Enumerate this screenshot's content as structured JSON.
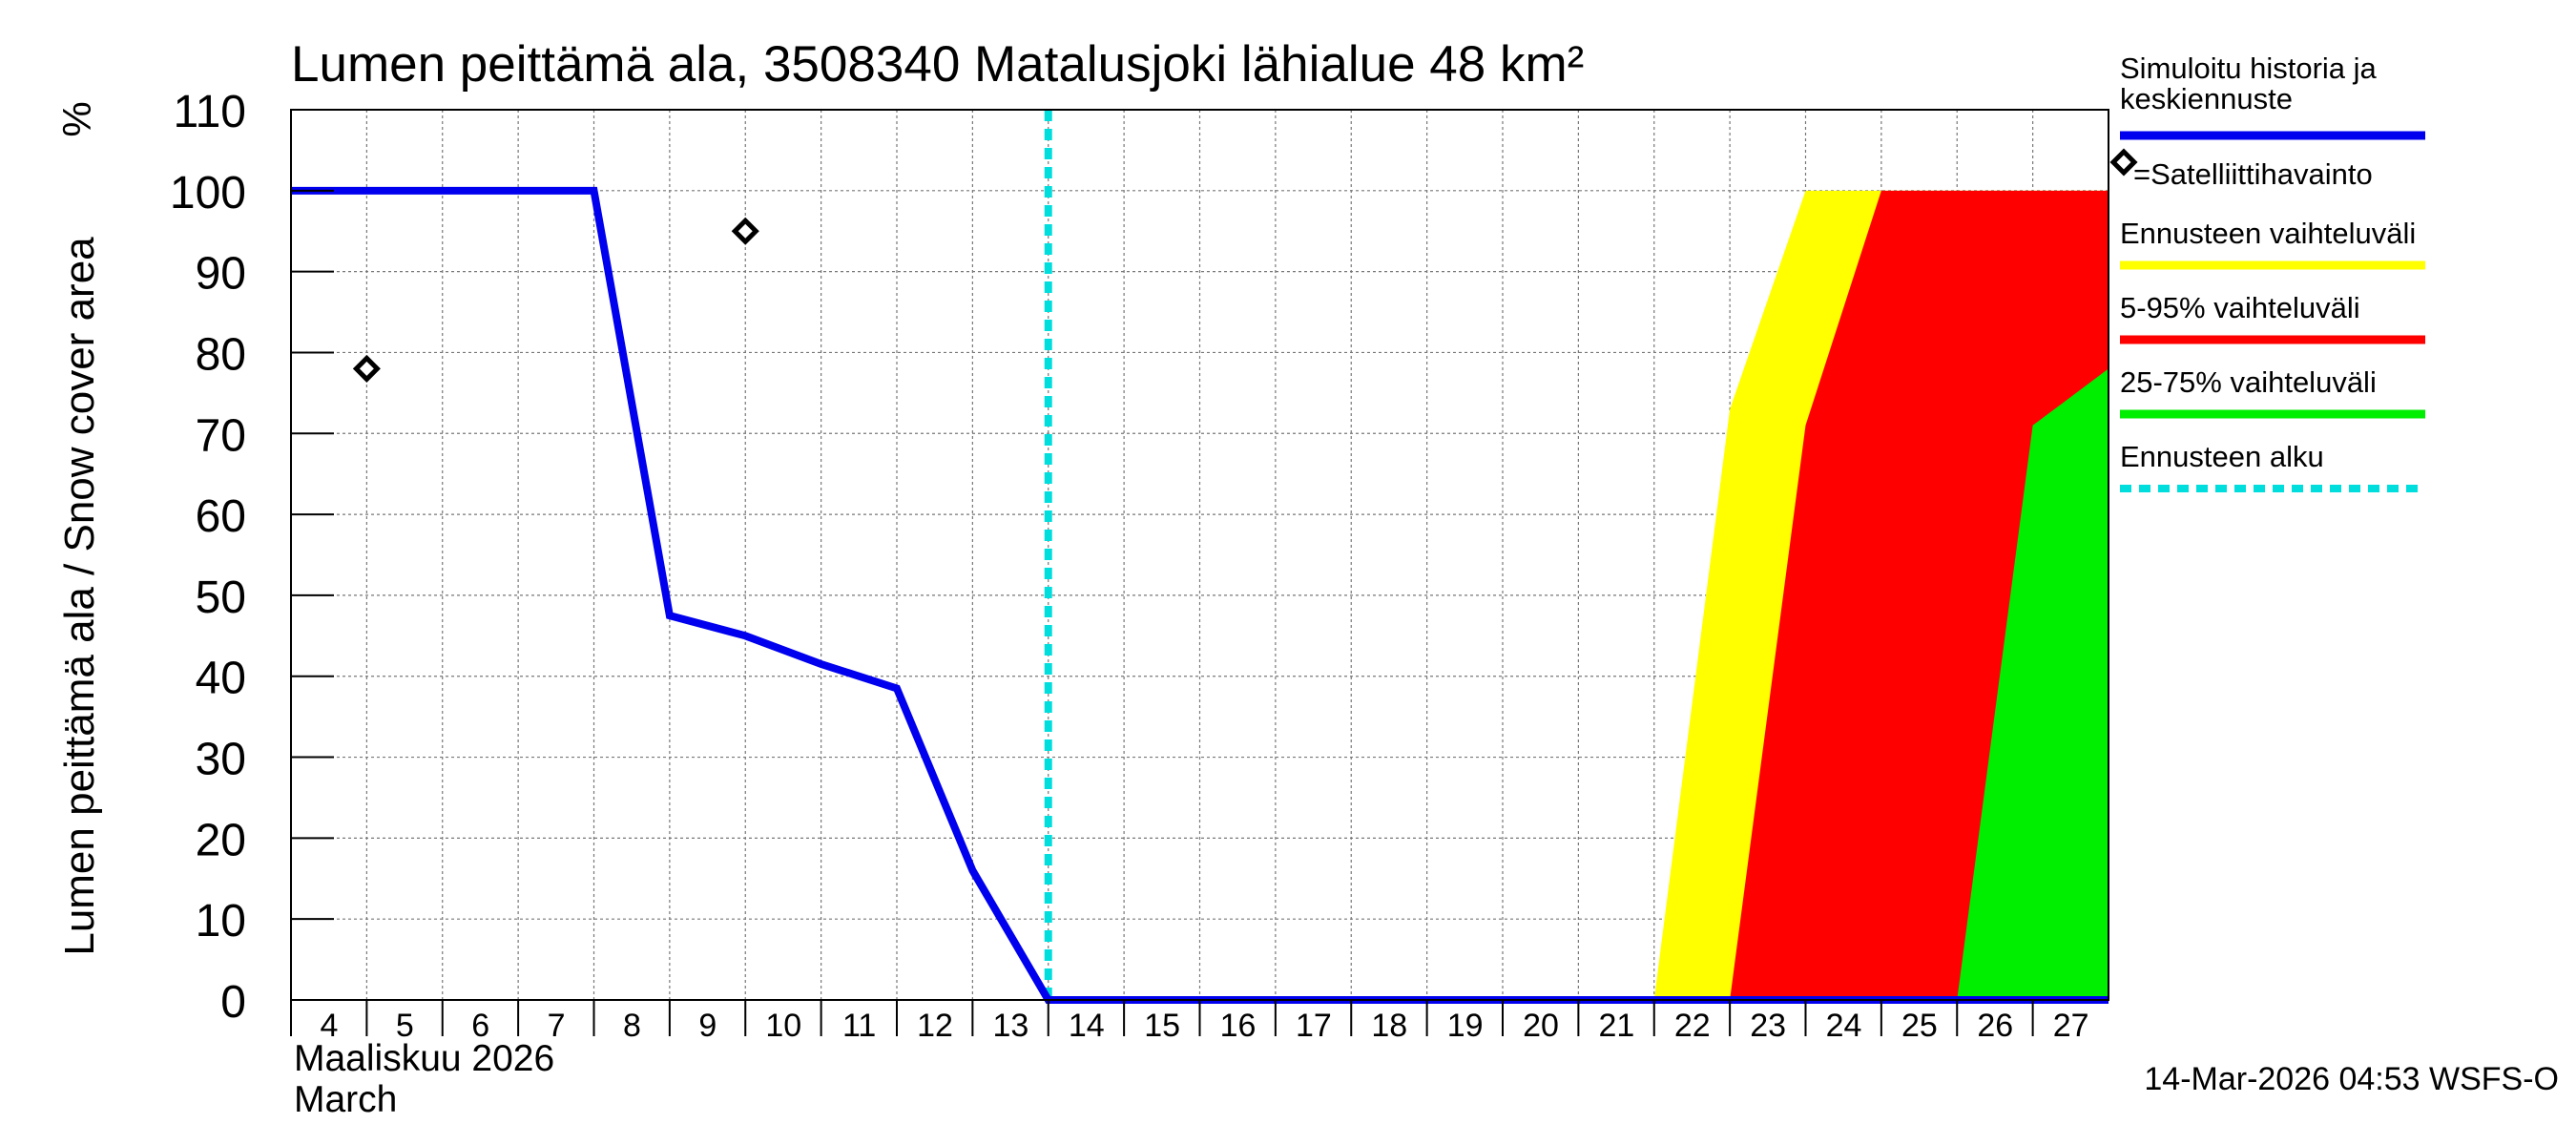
{
  "chart_data": {
    "type": "area",
    "title": "Lumen peittämä ala, 3508340 Matalusjoki lähialue 48 km²",
    "ylabel": "Lumen peittämä ala / Snow cover area",
    "yunit": "%",
    "xlabel_fi": "Maaliskuu 2026",
    "xlabel_en": "March",
    "timestamp": "14-Mar-2026 04:53 WSFS-O",
    "ylim": [
      0,
      110
    ],
    "yticks": [
      0,
      10,
      20,
      30,
      40,
      50,
      60,
      70,
      80,
      90,
      100,
      110
    ],
    "ytick_labels": [
      "0",
      "10",
      "20",
      "30",
      "40",
      "50",
      "60",
      "70",
      "80",
      "90",
      "100",
      "110"
    ],
    "xlim": [
      4,
      28
    ],
    "xticks": [
      4,
      5,
      6,
      7,
      8,
      9,
      10,
      11,
      12,
      13,
      14,
      15,
      16,
      17,
      18,
      19,
      20,
      21,
      22,
      23,
      24,
      25,
      26,
      27
    ],
    "xtick_labels": [
      "4",
      "5",
      "6",
      "7",
      "8",
      "9",
      "10",
      "11",
      "12",
      "13",
      "14",
      "15",
      "16",
      "17",
      "18",
      "19",
      "20",
      "21",
      "22",
      "23",
      "24",
      "25",
      "26",
      "27"
    ],
    "forecast_start": 14,
    "series": [
      {
        "name": "Ennusteen vaihteluväli",
        "kind": "band",
        "color": "#ffff00",
        "upper": [
          [
            22,
            0
          ],
          [
            23,
            73
          ],
          [
            24,
            100
          ],
          [
            28,
            100
          ]
        ],
        "lower": [
          [
            22,
            0
          ],
          [
            28,
            0
          ]
        ]
      },
      {
        "name": "5-95% vaihteluväli",
        "kind": "band",
        "color": "#ff0000",
        "upper": [
          [
            23,
            0
          ],
          [
            24,
            71
          ],
          [
            25,
            100
          ],
          [
            28,
            100
          ]
        ],
        "lower": [
          [
            23,
            0
          ],
          [
            28,
            0
          ]
        ]
      },
      {
        "name": "25-75% vaihteluväli",
        "kind": "band",
        "color": "#00ee00",
        "upper": [
          [
            26,
            0
          ],
          [
            27,
            71
          ],
          [
            28,
            78
          ]
        ],
        "lower": [
          [
            26,
            0
          ],
          [
            28,
            0
          ]
        ]
      },
      {
        "name": "Simuloitu historia ja keskiennuste",
        "kind": "line",
        "color": "#0000ee",
        "points": [
          [
            4,
            100
          ],
          [
            8,
            100
          ],
          [
            9,
            47.5
          ],
          [
            10,
            45
          ],
          [
            11,
            41.5
          ],
          [
            12,
            38.5
          ],
          [
            13,
            16
          ],
          [
            14,
            0
          ],
          [
            28,
            0
          ]
        ]
      },
      {
        "name": "=Satelliittihavainto",
        "kind": "scatter",
        "color": "#000000",
        "points": [
          [
            5,
            78
          ],
          [
            10,
            95
          ]
        ]
      }
    ],
    "legend": [
      {
        "label_lines": [
          "Simuloitu historia ja",
          "keskiennuste"
        ],
        "color": "#0000ee",
        "style": "line"
      },
      {
        "label_lines": [
          "=Satelliittihavainto"
        ],
        "color": "#000000",
        "style": "diamond"
      },
      {
        "label_lines": [
          "Ennusteen vaihteluväli"
        ],
        "color": "#ffff00",
        "style": "line"
      },
      {
        "label_lines": [
          "5-95% vaihteluväli"
        ],
        "color": "#ff0000",
        "style": "line"
      },
      {
        "label_lines": [
          "25-75% vaihteluväli"
        ],
        "color": "#00ee00",
        "style": "line"
      },
      {
        "label_lines": [
          "Ennusteen alku"
        ],
        "color": "#00dddd",
        "style": "dashed"
      }
    ],
    "legend_position": "right"
  }
}
